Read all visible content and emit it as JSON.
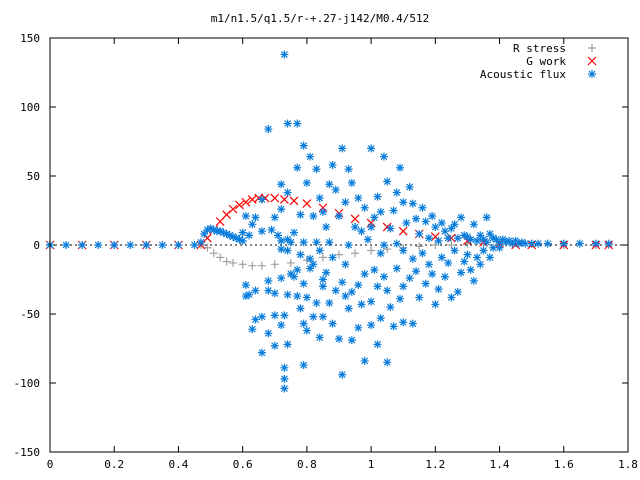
{
  "chart_data": {
    "type": "scatter",
    "title": "m1/n1.5/q1.5/r-+.27-j142/M0.4/512",
    "xlabel": "",
    "ylabel": "",
    "xlim": [
      0,
      1.8
    ],
    "ylim": [
      -150,
      150
    ],
    "x_ticks": [
      "0",
      "0.2",
      "0.4",
      "0.6",
      "0.8",
      "1",
      "1.2",
      "1.4",
      "1.6",
      "1.8"
    ],
    "y_ticks": [
      "150",
      "100",
      "50",
      "0",
      "-50",
      "-100",
      "-150"
    ],
    "grid": false,
    "legend_position": "top-right",
    "series": [
      {
        "name": "R stress",
        "marker": "plus",
        "color": "#a0a0a0",
        "points": [
          [
            0.0,
            0
          ],
          [
            0.1,
            0
          ],
          [
            0.2,
            0
          ],
          [
            0.3,
            0
          ],
          [
            0.4,
            0
          ],
          [
            0.47,
            0
          ],
          [
            0.49,
            -2
          ],
          [
            0.51,
            -6
          ],
          [
            0.53,
            -9
          ],
          [
            0.55,
            -12
          ],
          [
            0.57,
            -13
          ],
          [
            0.6,
            -14
          ],
          [
            0.63,
            -15
          ],
          [
            0.66,
            -15
          ],
          [
            0.7,
            -14
          ],
          [
            0.75,
            -13
          ],
          [
            0.8,
            -11
          ],
          [
            0.85,
            -9
          ],
          [
            0.9,
            -7
          ],
          [
            0.95,
            -6
          ],
          [
            1.0,
            -4
          ],
          [
            1.05,
            -3
          ],
          [
            1.1,
            -2
          ],
          [
            1.15,
            -1
          ],
          [
            1.2,
            0
          ],
          [
            1.25,
            0
          ],
          [
            1.3,
            1
          ],
          [
            1.35,
            1
          ],
          [
            1.4,
            1
          ],
          [
            1.5,
            1
          ],
          [
            1.6,
            0
          ],
          [
            1.7,
            0
          ],
          [
            1.74,
            0
          ]
        ]
      },
      {
        "name": "G work",
        "marker": "cross",
        "color": "#ff0000",
        "points": [
          [
            0.0,
            0
          ],
          [
            0.1,
            0
          ],
          [
            0.2,
            0
          ],
          [
            0.3,
            0
          ],
          [
            0.4,
            0
          ],
          [
            0.47,
            0
          ],
          [
            0.49,
            5
          ],
          [
            0.51,
            11
          ],
          [
            0.53,
            17
          ],
          [
            0.55,
            22
          ],
          [
            0.57,
            26
          ],
          [
            0.59,
            29
          ],
          [
            0.61,
            31
          ],
          [
            0.63,
            33
          ],
          [
            0.65,
            34
          ],
          [
            0.67,
            34
          ],
          [
            0.7,
            34
          ],
          [
            0.73,
            33
          ],
          [
            0.76,
            32
          ],
          [
            0.8,
            30
          ],
          [
            0.85,
            27
          ],
          [
            0.9,
            23
          ],
          [
            0.95,
            19
          ],
          [
            1.0,
            16
          ],
          [
            1.05,
            13
          ],
          [
            1.1,
            10
          ],
          [
            1.15,
            8
          ],
          [
            1.2,
            6
          ],
          [
            1.25,
            5
          ],
          [
            1.3,
            3
          ],
          [
            1.35,
            2
          ],
          [
            1.4,
            1
          ],
          [
            1.45,
            0
          ],
          [
            1.5,
            0
          ],
          [
            1.6,
            0
          ],
          [
            1.7,
            0
          ],
          [
            1.74,
            0
          ]
        ]
      },
      {
        "name": "Acoustic flux",
        "marker": "star",
        "color": "#0a7ddb",
        "points": [
          [
            0.0,
            0
          ],
          [
            0.05,
            0
          ],
          [
            0.1,
            0
          ],
          [
            0.15,
            0
          ],
          [
            0.2,
            0
          ],
          [
            0.25,
            0
          ],
          [
            0.3,
            0
          ],
          [
            0.35,
            0
          ],
          [
            0.4,
            0
          ],
          [
            0.45,
            0
          ],
          [
            0.47,
            2
          ],
          [
            0.48,
            8
          ],
          [
            0.49,
            11
          ],
          [
            0.5,
            12
          ],
          [
            0.51,
            11
          ],
          [
            0.52,
            10
          ],
          [
            0.53,
            10
          ],
          [
            0.54,
            9
          ],
          [
            0.55,
            8
          ],
          [
            0.56,
            7
          ],
          [
            0.57,
            6
          ],
          [
            0.58,
            5
          ],
          [
            0.59,
            4
          ],
          [
            0.6,
            3
          ],
          [
            0.6,
            9
          ],
          [
            0.61,
            21
          ],
          [
            0.61,
            -29
          ],
          [
            0.61,
            -37
          ],
          [
            0.62,
            7
          ],
          [
            0.62,
            -36
          ],
          [
            0.63,
            15
          ],
          [
            0.63,
            -61
          ],
          [
            0.64,
            20
          ],
          [
            0.64,
            -54
          ],
          [
            0.64,
            -33
          ],
          [
            0.66,
            33
          ],
          [
            0.66,
            10
          ],
          [
            0.66,
            -52
          ],
          [
            0.66,
            -78
          ],
          [
            0.68,
            84
          ],
          [
            0.68,
            -26
          ],
          [
            0.68,
            -33
          ],
          [
            0.68,
            -64
          ],
          [
            0.69,
            11
          ],
          [
            0.7,
            20
          ],
          [
            0.7,
            -35
          ],
          [
            0.7,
            -51
          ],
          [
            0.7,
            -73
          ],
          [
            0.71,
            7
          ],
          [
            0.72,
            44
          ],
          [
            0.72,
            26
          ],
          [
            0.72,
            3
          ],
          [
            0.72,
            -3
          ],
          [
            0.72,
            -24
          ],
          [
            0.72,
            -58
          ],
          [
            0.73,
            138
          ],
          [
            0.73,
            -51
          ],
          [
            0.73,
            -89
          ],
          [
            0.73,
            -97
          ],
          [
            0.73,
            -104
          ],
          [
            0.74,
            88
          ],
          [
            0.74,
            38
          ],
          [
            0.74,
            4
          ],
          [
            0.74,
            -4
          ],
          [
            0.74,
            -36
          ],
          [
            0.74,
            -72
          ],
          [
            0.75,
            2
          ],
          [
            0.75,
            -21
          ],
          [
            0.76,
            9
          ],
          [
            0.76,
            -23
          ],
          [
            0.77,
            88
          ],
          [
            0.77,
            56
          ],
          [
            0.77,
            -18
          ],
          [
            0.77,
            -37
          ],
          [
            0.78,
            22
          ],
          [
            0.78,
            -7
          ],
          [
            0.78,
            -46
          ],
          [
            0.79,
            72
          ],
          [
            0.79,
            2
          ],
          [
            0.79,
            -28
          ],
          [
            0.79,
            -57
          ],
          [
            0.79,
            -87
          ],
          [
            0.8,
            45
          ],
          [
            0.8,
            -38
          ],
          [
            0.8,
            -62
          ],
          [
            0.81,
            64
          ],
          [
            0.81,
            -10
          ],
          [
            0.81,
            -17
          ],
          [
            0.82,
            21
          ],
          [
            0.82,
            -14
          ],
          [
            0.82,
            -52
          ],
          [
            0.83,
            55
          ],
          [
            0.83,
            2
          ],
          [
            0.83,
            -42
          ],
          [
            0.84,
            34
          ],
          [
            0.84,
            -4
          ],
          [
            0.84,
            -67
          ],
          [
            0.85,
            24
          ],
          [
            0.85,
            -25
          ],
          [
            0.85,
            -30
          ],
          [
            0.85,
            -52
          ],
          [
            0.86,
            13
          ],
          [
            0.86,
            -20
          ],
          [
            0.87,
            44
          ],
          [
            0.87,
            2
          ],
          [
            0.87,
            -42
          ],
          [
            0.88,
            58
          ],
          [
            0.88,
            -9
          ],
          [
            0.88,
            -57
          ],
          [
            0.89,
            40
          ],
          [
            0.89,
            -33
          ],
          [
            0.9,
            21
          ],
          [
            0.9,
            -68
          ],
          [
            0.91,
            70
          ],
          [
            0.91,
            -27
          ],
          [
            0.91,
            -94
          ],
          [
            0.92,
            31
          ],
          [
            0.92,
            -14
          ],
          [
            0.92,
            -37
          ],
          [
            0.93,
            55
          ],
          [
            0.93,
            0
          ],
          [
            0.93,
            -46
          ],
          [
            0.94,
            45
          ],
          [
            0.94,
            -34
          ],
          [
            0.94,
            -69
          ],
          [
            0.95,
            13
          ],
          [
            0.96,
            34
          ],
          [
            0.96,
            -29
          ],
          [
            0.96,
            -60
          ],
          [
            0.97,
            10
          ],
          [
            0.97,
            -43
          ],
          [
            0.98,
            27
          ],
          [
            0.98,
            -21
          ],
          [
            0.98,
            -84
          ],
          [
            0.99,
            4
          ],
          [
            1.0,
            70
          ],
          [
            1.0,
            13
          ],
          [
            1.0,
            -41
          ],
          [
            1.0,
            -58
          ],
          [
            1.01,
            20
          ],
          [
            1.01,
            -18
          ],
          [
            1.02,
            35
          ],
          [
            1.02,
            -30
          ],
          [
            1.02,
            -72
          ],
          [
            1.03,
            24
          ],
          [
            1.03,
            -6
          ],
          [
            1.03,
            -53
          ],
          [
            1.04,
            64
          ],
          [
            1.04,
            0
          ],
          [
            1.04,
            -23
          ],
          [
            1.05,
            46
          ],
          [
            1.05,
            -33
          ],
          [
            1.05,
            -85
          ],
          [
            1.06,
            12
          ],
          [
            1.06,
            -45
          ],
          [
            1.07,
            25
          ],
          [
            1.07,
            -59
          ],
          [
            1.08,
            38
          ],
          [
            1.08,
            1
          ],
          [
            1.08,
            -17
          ],
          [
            1.09,
            56
          ],
          [
            1.09,
            -39
          ],
          [
            1.1,
            31
          ],
          [
            1.1,
            -4
          ],
          [
            1.1,
            -30
          ],
          [
            1.1,
            -56
          ],
          [
            1.11,
            16
          ],
          [
            1.12,
            42
          ],
          [
            1.12,
            -24
          ],
          [
            1.13,
            30
          ],
          [
            1.13,
            -10
          ],
          [
            1.13,
            -57
          ],
          [
            1.14,
            19
          ],
          [
            1.14,
            -19
          ],
          [
            1.15,
            8
          ],
          [
            1.15,
            -38
          ],
          [
            1.16,
            27
          ],
          [
            1.16,
            -6
          ],
          [
            1.17,
            17
          ],
          [
            1.17,
            -28
          ],
          [
            1.18,
            5
          ],
          [
            1.18,
            -14
          ],
          [
            1.19,
            21
          ],
          [
            1.19,
            -21
          ],
          [
            1.2,
            13
          ],
          [
            1.2,
            -43
          ],
          [
            1.21,
            3
          ],
          [
            1.21,
            -32
          ],
          [
            1.22,
            16
          ],
          [
            1.22,
            -9
          ],
          [
            1.23,
            10
          ],
          [
            1.23,
            -23
          ],
          [
            1.24,
            5
          ],
          [
            1.24,
            -13
          ],
          [
            1.25,
            12
          ],
          [
            1.25,
            -38
          ],
          [
            1.26,
            15
          ],
          [
            1.26,
            -4
          ],
          [
            1.27,
            5
          ],
          [
            1.27,
            -34
          ],
          [
            1.28,
            20
          ],
          [
            1.28,
            -20
          ],
          [
            1.29,
            7
          ],
          [
            1.29,
            -12
          ],
          [
            1.3,
            6
          ],
          [
            1.3,
            -7
          ],
          [
            1.31,
            4
          ],
          [
            1.31,
            -18
          ],
          [
            1.32,
            15
          ],
          [
            1.32,
            -26
          ],
          [
            1.33,
            3
          ],
          [
            1.33,
            -9
          ],
          [
            1.34,
            7
          ],
          [
            1.34,
            -14
          ],
          [
            1.35,
            4
          ],
          [
            1.35,
            -4
          ],
          [
            1.36,
            20
          ],
          [
            1.36,
            2
          ],
          [
            1.37,
            8
          ],
          [
            1.37,
            -9
          ],
          [
            1.38,
            5
          ],
          [
            1.38,
            -2
          ],
          [
            1.39,
            4
          ],
          [
            1.4,
            2
          ],
          [
            1.4,
            -2
          ],
          [
            1.41,
            4
          ],
          [
            1.42,
            2
          ],
          [
            1.43,
            3
          ],
          [
            1.44,
            1
          ],
          [
            1.45,
            3
          ],
          [
            1.46,
            1
          ],
          [
            1.47,
            2
          ],
          [
            1.48,
            1
          ],
          [
            1.5,
            1
          ],
          [
            1.52,
            1
          ],
          [
            1.55,
            1
          ],
          [
            1.6,
            1
          ],
          [
            1.65,
            1
          ],
          [
            1.7,
            1
          ],
          [
            1.74,
            1
          ]
        ]
      }
    ]
  }
}
